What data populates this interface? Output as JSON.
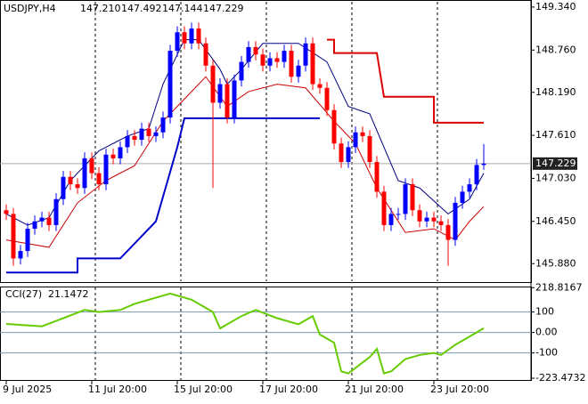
{
  "chart_data": [
    {
      "type": "candlestick",
      "symbol": "USDJPY,H4",
      "ohlc_text": [
        "147.210",
        "147.492",
        "147.144",
        "147.229"
      ],
      "bull_color": "#0000ff",
      "bear_color": "#ff0000",
      "open": [
        146.6,
        146.55,
        145.95,
        146.05,
        146.35,
        146.45,
        146.5,
        146.4,
        146.75,
        147.05,
        146.95,
        146.9,
        147.3,
        147.1,
        146.95,
        147.35,
        147.3,
        147.45,
        147.6,
        147.55,
        147.7,
        147.6,
        147.65,
        147.85,
        148.75,
        149.0,
        148.85,
        149.05,
        148.85,
        148.55,
        148.05,
        148.3,
        147.85,
        148.35,
        148.6,
        148.8,
        148.7,
        148.55,
        148.65,
        148.6,
        148.75,
        148.4,
        148.55,
        148.85,
        148.3,
        148.25,
        147.95,
        147.5,
        147.25,
        147.45,
        147.65,
        147.6,
        147.25,
        146.85,
        146.4,
        146.55,
        146.55,
        146.95,
        146.6,
        146.45,
        146.5,
        146.45,
        146.4,
        146.2,
        146.7,
        146.85,
        146.95,
        147.21
      ],
      "high": [
        146.68,
        146.63,
        146.13,
        146.43,
        146.53,
        146.58,
        146.58,
        146.83,
        147.13,
        147.13,
        147.03,
        147.38,
        147.38,
        147.18,
        147.43,
        147.43,
        147.53,
        147.68,
        147.68,
        147.78,
        147.78,
        147.73,
        147.93,
        148.83,
        149.08,
        149.08,
        149.13,
        149.13,
        148.93,
        148.63,
        148.38,
        148.38,
        148.43,
        148.68,
        148.88,
        148.88,
        148.78,
        148.73,
        148.73,
        148.83,
        148.83,
        148.63,
        148.93,
        148.93,
        148.38,
        148.33,
        148.03,
        147.58,
        147.53,
        147.73,
        147.73,
        147.68,
        147.33,
        146.93,
        146.63,
        146.63,
        147.03,
        147.03,
        146.68,
        146.58,
        146.58,
        146.53,
        146.48,
        146.78,
        146.93,
        147.03,
        147.29,
        147.492
      ],
      "low": [
        146.47,
        145.85,
        145.87,
        145.97,
        146.27,
        146.37,
        146.32,
        146.32,
        146.67,
        146.87,
        146.82,
        146.82,
        147.02,
        146.87,
        146.87,
        147.22,
        147.22,
        147.37,
        147.47,
        147.47,
        147.52,
        147.52,
        147.57,
        147.77,
        148.67,
        148.77,
        148.77,
        148.77,
        148.47,
        146.9,
        147.97,
        147.77,
        147.77,
        148.27,
        148.52,
        148.62,
        148.47,
        148.47,
        148.52,
        148.52,
        148.32,
        148.32,
        148.47,
        148.22,
        148.17,
        147.87,
        147.42,
        147.17,
        147.17,
        147.37,
        147.52,
        147.17,
        146.77,
        146.32,
        146.32,
        146.47,
        146.47,
        146.52,
        146.37,
        146.37,
        146.37,
        146.32,
        145.85,
        146.12,
        146.62,
        146.77,
        146.87,
        147.144
      ],
      "close": [
        146.55,
        145.95,
        146.05,
        146.35,
        146.45,
        146.5,
        146.4,
        146.75,
        147.05,
        146.95,
        146.9,
        147.3,
        147.1,
        146.95,
        147.35,
        147.3,
        147.45,
        147.6,
        147.55,
        147.7,
        147.6,
        147.65,
        147.85,
        148.75,
        149.0,
        148.85,
        149.05,
        148.85,
        148.55,
        148.05,
        148.3,
        147.85,
        148.35,
        148.6,
        148.8,
        148.7,
        148.55,
        148.65,
        148.6,
        148.75,
        148.4,
        148.55,
        148.85,
        148.3,
        148.25,
        147.95,
        147.5,
        147.25,
        147.45,
        147.65,
        147.6,
        147.25,
        146.85,
        146.4,
        146.55,
        146.55,
        146.95,
        146.6,
        146.45,
        146.5,
        146.45,
        146.4,
        146.2,
        146.7,
        146.85,
        146.95,
        147.21,
        147.229
      ],
      "ylim": [
        145.643,
        149.411
      ],
      "yticks": [
        {
          "value": 149.34,
          "label": "149.340"
        },
        {
          "value": 148.76,
          "label": "148.760"
        },
        {
          "value": 148.19,
          "label": "148.190"
        },
        {
          "value": 147.61,
          "label": "147.610"
        },
        {
          "value": 147.03,
          "label": "147.030"
        },
        {
          "value": 146.45,
          "label": "146.450"
        },
        {
          "value": 145.88,
          "label": "145.880"
        }
      ],
      "current_price": {
        "value": 147.229,
        "label": "147.229"
      },
      "xticks": [
        {
          "value": 0,
          "label": "9 Jul 2025"
        },
        {
          "value": 12,
          "label": "11 Jul 20:00"
        },
        {
          "value": 24,
          "label": "15 Jul 20:00"
        },
        {
          "value": 36,
          "label": "17 Jul 20:00"
        },
        {
          "value": 48,
          "label": "21 Jul 20:00"
        },
        {
          "value": 60,
          "label": "23 Jul 20:00"
        }
      ],
      "lines": [
        {
          "color": "#000080",
          "width": 1,
          "x": [
            0,
            3,
            6,
            9,
            13,
            17,
            20,
            22,
            25,
            27,
            30,
            31,
            33,
            36,
            41,
            45,
            48,
            51,
            55,
            58,
            62,
            65,
            67
          ],
          "values": [
            146.55,
            146.4,
            146.5,
            147.0,
            147.4,
            147.6,
            147.7,
            148.3,
            148.9,
            148.9,
            148.5,
            148.3,
            148.5,
            148.85,
            148.85,
            148.6,
            148.0,
            147.9,
            147.0,
            146.9,
            146.55,
            146.75,
            147.1
          ]
        },
        {
          "color": "#cc0000",
          "width": 1,
          "x": [
            0,
            6,
            10,
            14,
            18,
            22,
            25,
            28,
            31,
            34,
            38,
            42,
            46,
            49,
            52,
            56,
            60,
            63,
            65,
            67
          ],
          "values": [
            146.2,
            146.1,
            146.7,
            147.0,
            147.2,
            147.8,
            148.1,
            148.4,
            148.0,
            148.2,
            148.3,
            148.25,
            147.8,
            147.5,
            146.9,
            146.3,
            146.35,
            146.2,
            146.45,
            146.65
          ]
        },
        {
          "color": "#0000cd",
          "width": 2,
          "x": [
            0,
            10,
            10,
            16,
            21,
            24,
            25,
            44
          ],
          "values": [
            145.76,
            145.76,
            145.95,
            145.95,
            146.45,
            147.45,
            147.84,
            147.84
          ]
        },
        {
          "color": "#dd0000",
          "width": 2,
          "x": [
            45,
            46,
            46,
            52,
            53,
            60,
            60,
            67
          ],
          "values": [
            148.9,
            148.9,
            148.72,
            148.72,
            148.13,
            148.13,
            147.78,
            147.78
          ]
        }
      ]
    },
    {
      "type": "line",
      "label": "CCI(27)",
      "current_value": 21.1472,
      "color": "#66cc00",
      "x": [
        0,
        5,
        8,
        11,
        13,
        16,
        18,
        23,
        26,
        29,
        30,
        33,
        35,
        38,
        41,
        43,
        44,
        46,
        47,
        48,
        51,
        52,
        53,
        54,
        56,
        58,
        60,
        61,
        63,
        65,
        67
      ],
      "values": [
        42,
        30,
        70,
        110,
        100,
        110,
        140,
        190,
        160,
        100,
        20,
        80,
        110,
        70,
        40,
        80,
        -10,
        -50,
        -190,
        -200,
        -120,
        -80,
        -200,
        -190,
        -130,
        -110,
        -100,
        -110,
        -60,
        -20,
        21.1472
      ],
      "ylim": [
        -232,
        220
      ],
      "yticks": [
        218.8167,
        100,
        {
          "value": 0,
          "label": "0.00"
        },
        -100,
        -223.4732
      ]
    }
  ]
}
